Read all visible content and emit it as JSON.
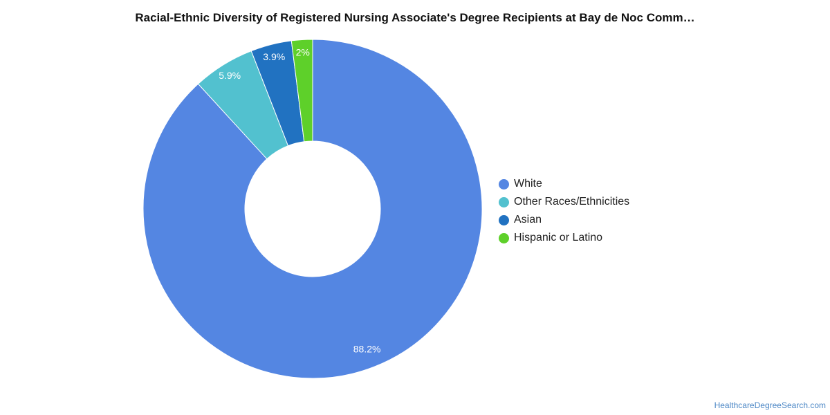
{
  "chart_data": {
    "type": "pie",
    "title": "Racial-Ethnic Diversity of Registered Nursing Associate's Degree Recipients at Bay de Noc Comm…",
    "donut": true,
    "series": [
      {
        "name": "White",
        "value": 88.2,
        "label": "88.2%",
        "color": "#5486e2"
      },
      {
        "name": "Other Races/Ethnicities",
        "value": 5.9,
        "label": "5.9%",
        "color": "#52c1cf"
      },
      {
        "name": "Asian",
        "value": 3.9,
        "label": "3.9%",
        "color": "#2172c1"
      },
      {
        "name": "Hispanic or Latino",
        "value": 2.0,
        "label": "2%",
        "color": "#5ed02a"
      }
    ],
    "legend_position": "right"
  },
  "source": {
    "text": "HealthcareDegreeSearch.com"
  }
}
